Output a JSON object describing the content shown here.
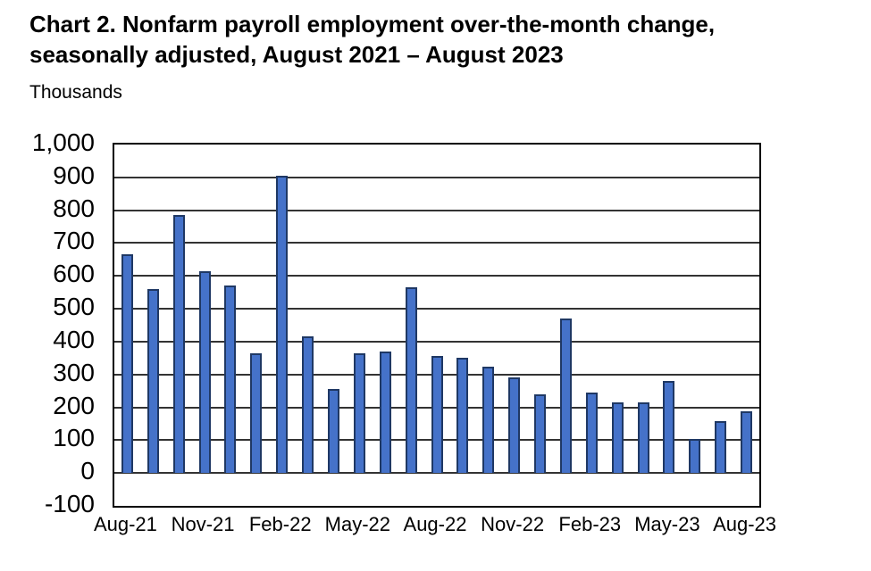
{
  "header": {
    "title_line1": "Chart 2. Nonfarm payroll employment over-the-month change,",
    "title_line2": "seasonally adjusted, August 2021 – August 2023",
    "units_label": "Thousands"
  },
  "chart_data": {
    "type": "bar",
    "title": "Chart 2. Nonfarm payroll employment over-the-month change, seasonally adjusted, August 2021 – August 2023",
    "ylabel": "Thousands",
    "xlabel": "",
    "ylim": [
      -100,
      1000
    ],
    "ytick_step": 100,
    "ytick_labels": [
      "1,000",
      "900",
      "800",
      "700",
      "600",
      "500",
      "400",
      "300",
      "200",
      "100",
      "0",
      "-100"
    ],
    "ytick_values": [
      1000,
      900,
      800,
      700,
      600,
      500,
      400,
      300,
      200,
      100,
      0,
      -100
    ],
    "categories": [
      "Aug-21",
      "Sep-21",
      "Oct-21",
      "Nov-21",
      "Dec-21",
      "Jan-22",
      "Feb-22",
      "Mar-22",
      "Apr-22",
      "May-22",
      "Jun-22",
      "Jul-22",
      "Aug-22",
      "Sep-22",
      "Oct-22",
      "Nov-22",
      "Dec-22",
      "Jan-23",
      "Feb-23",
      "Mar-23",
      "Apr-23",
      "May-23",
      "Jun-23",
      "Jul-23",
      "Aug-23"
    ],
    "values": [
      665,
      560,
      785,
      615,
      570,
      365,
      905,
      415,
      255,
      365,
      370,
      565,
      355,
      350,
      325,
      290,
      240,
      470,
      245,
      215,
      215,
      280,
      105,
      157,
      187
    ],
    "xtick_labels_shown": [
      "Aug-21",
      "Nov-21",
      "Feb-22",
      "May-22",
      "Aug-22",
      "Nov-22",
      "Feb-23",
      "May-23",
      "Aug-23"
    ],
    "xtick_every": 3,
    "grid": true,
    "legend_position": "none",
    "bar_color": "#4572C9",
    "bar_border_color": "#1F3864",
    "gridline_color": "#333333",
    "axis_color": "#000000"
  }
}
